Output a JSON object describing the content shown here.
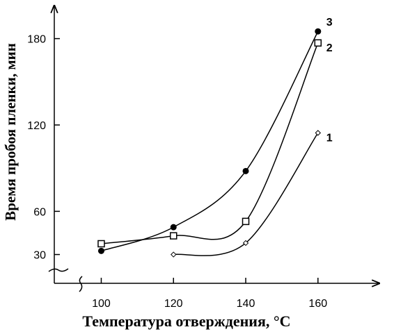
{
  "chart_data": {
    "type": "line",
    "ylabel": "Время пробоя пленки, мин",
    "xlabel": "Температура отверждения, °C",
    "x": [
      100,
      120,
      140,
      160
    ],
    "series": [
      {
        "name": "1",
        "color": "#000000",
        "marker": "diamond",
        "values": [
          null,
          30,
          38,
          114.5
        ]
      },
      {
        "name": "2",
        "color": "#000000",
        "marker": "square",
        "values": [
          37.5,
          43,
          53,
          177
        ]
      },
      {
        "name": "3",
        "color": "#000000",
        "marker": "circle",
        "values": [
          32.5,
          49,
          88,
          185
        ]
      }
    ],
    "xlim": [
      87,
      177
    ],
    "ylim": [
      10,
      202
    ],
    "xticks": [
      100,
      120,
      140,
      160
    ],
    "yticks": [
      30,
      60,
      120,
      180
    ]
  }
}
